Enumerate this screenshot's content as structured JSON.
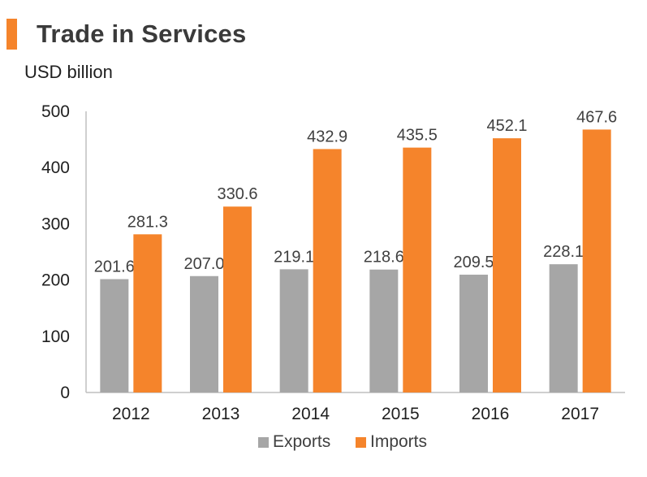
{
  "header": {
    "title": "Trade in Services",
    "accent_color": "#F5842B"
  },
  "chart_data": {
    "type": "bar",
    "title": "Trade in Services",
    "ylabel": "USD billion",
    "xlabel": "",
    "categories": [
      "2012",
      "2013",
      "2014",
      "2015",
      "2016",
      "2017"
    ],
    "series": [
      {
        "name": "Exports",
        "color": "#A6A6A6",
        "values": [
          201.6,
          207.0,
          219.1,
          218.6,
          209.5,
          228.1
        ]
      },
      {
        "name": "Imports",
        "color": "#F5842B",
        "values": [
          281.3,
          330.6,
          432.9,
          435.5,
          452.1,
          467.6
        ]
      }
    ],
    "ylim": [
      0,
      500
    ],
    "yticks": [
      0,
      100,
      200,
      300,
      400,
      500
    ],
    "grid": false,
    "legend_position": "bottom"
  }
}
